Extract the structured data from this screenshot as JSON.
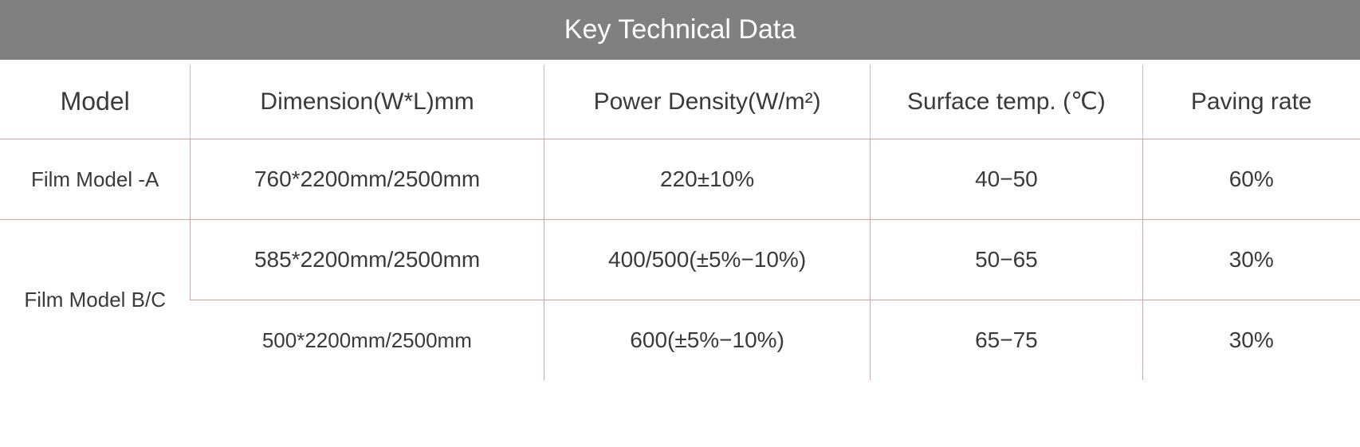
{
  "title": "Key Technical Data",
  "columns": {
    "model": "Model",
    "dimension": "Dimension(W*L)mm",
    "power_density": "Power Density(W/m²)",
    "surface_temp": "Surface temp. (℃)",
    "paving_rate": "Paving rate"
  },
  "rows": [
    {
      "model": "Film Model -A",
      "dimension": "760*2200mm/2500mm",
      "power_density": "220±10%",
      "surface_temp": "40−50",
      "paving_rate": "60%",
      "rowspan_model": 1
    },
    {
      "model": "Film Model B/C",
      "dimension": "585*2200mm/2500mm",
      "power_density": "400/500(±5%−10%)",
      "surface_temp": "50−65",
      "paving_rate": "30%",
      "rowspan_model": 2
    },
    {
      "model": null,
      "dimension": "500*2200mm/2500mm",
      "power_density": "600(±5%−10%)",
      "surface_temp": "65−75",
      "paving_rate": "30%",
      "rowspan_model": 0
    }
  ],
  "style": {
    "title_bg": "#808080",
    "title_color": "#ffffff",
    "border_color": "#d9a0a0",
    "header_border_left": "#c0c0c0",
    "text_color": "#3a3a3a",
    "title_fontsize": 34,
    "header_fontsize": 30,
    "cell_fontsize": 28,
    "model_fontsize": 26
  }
}
